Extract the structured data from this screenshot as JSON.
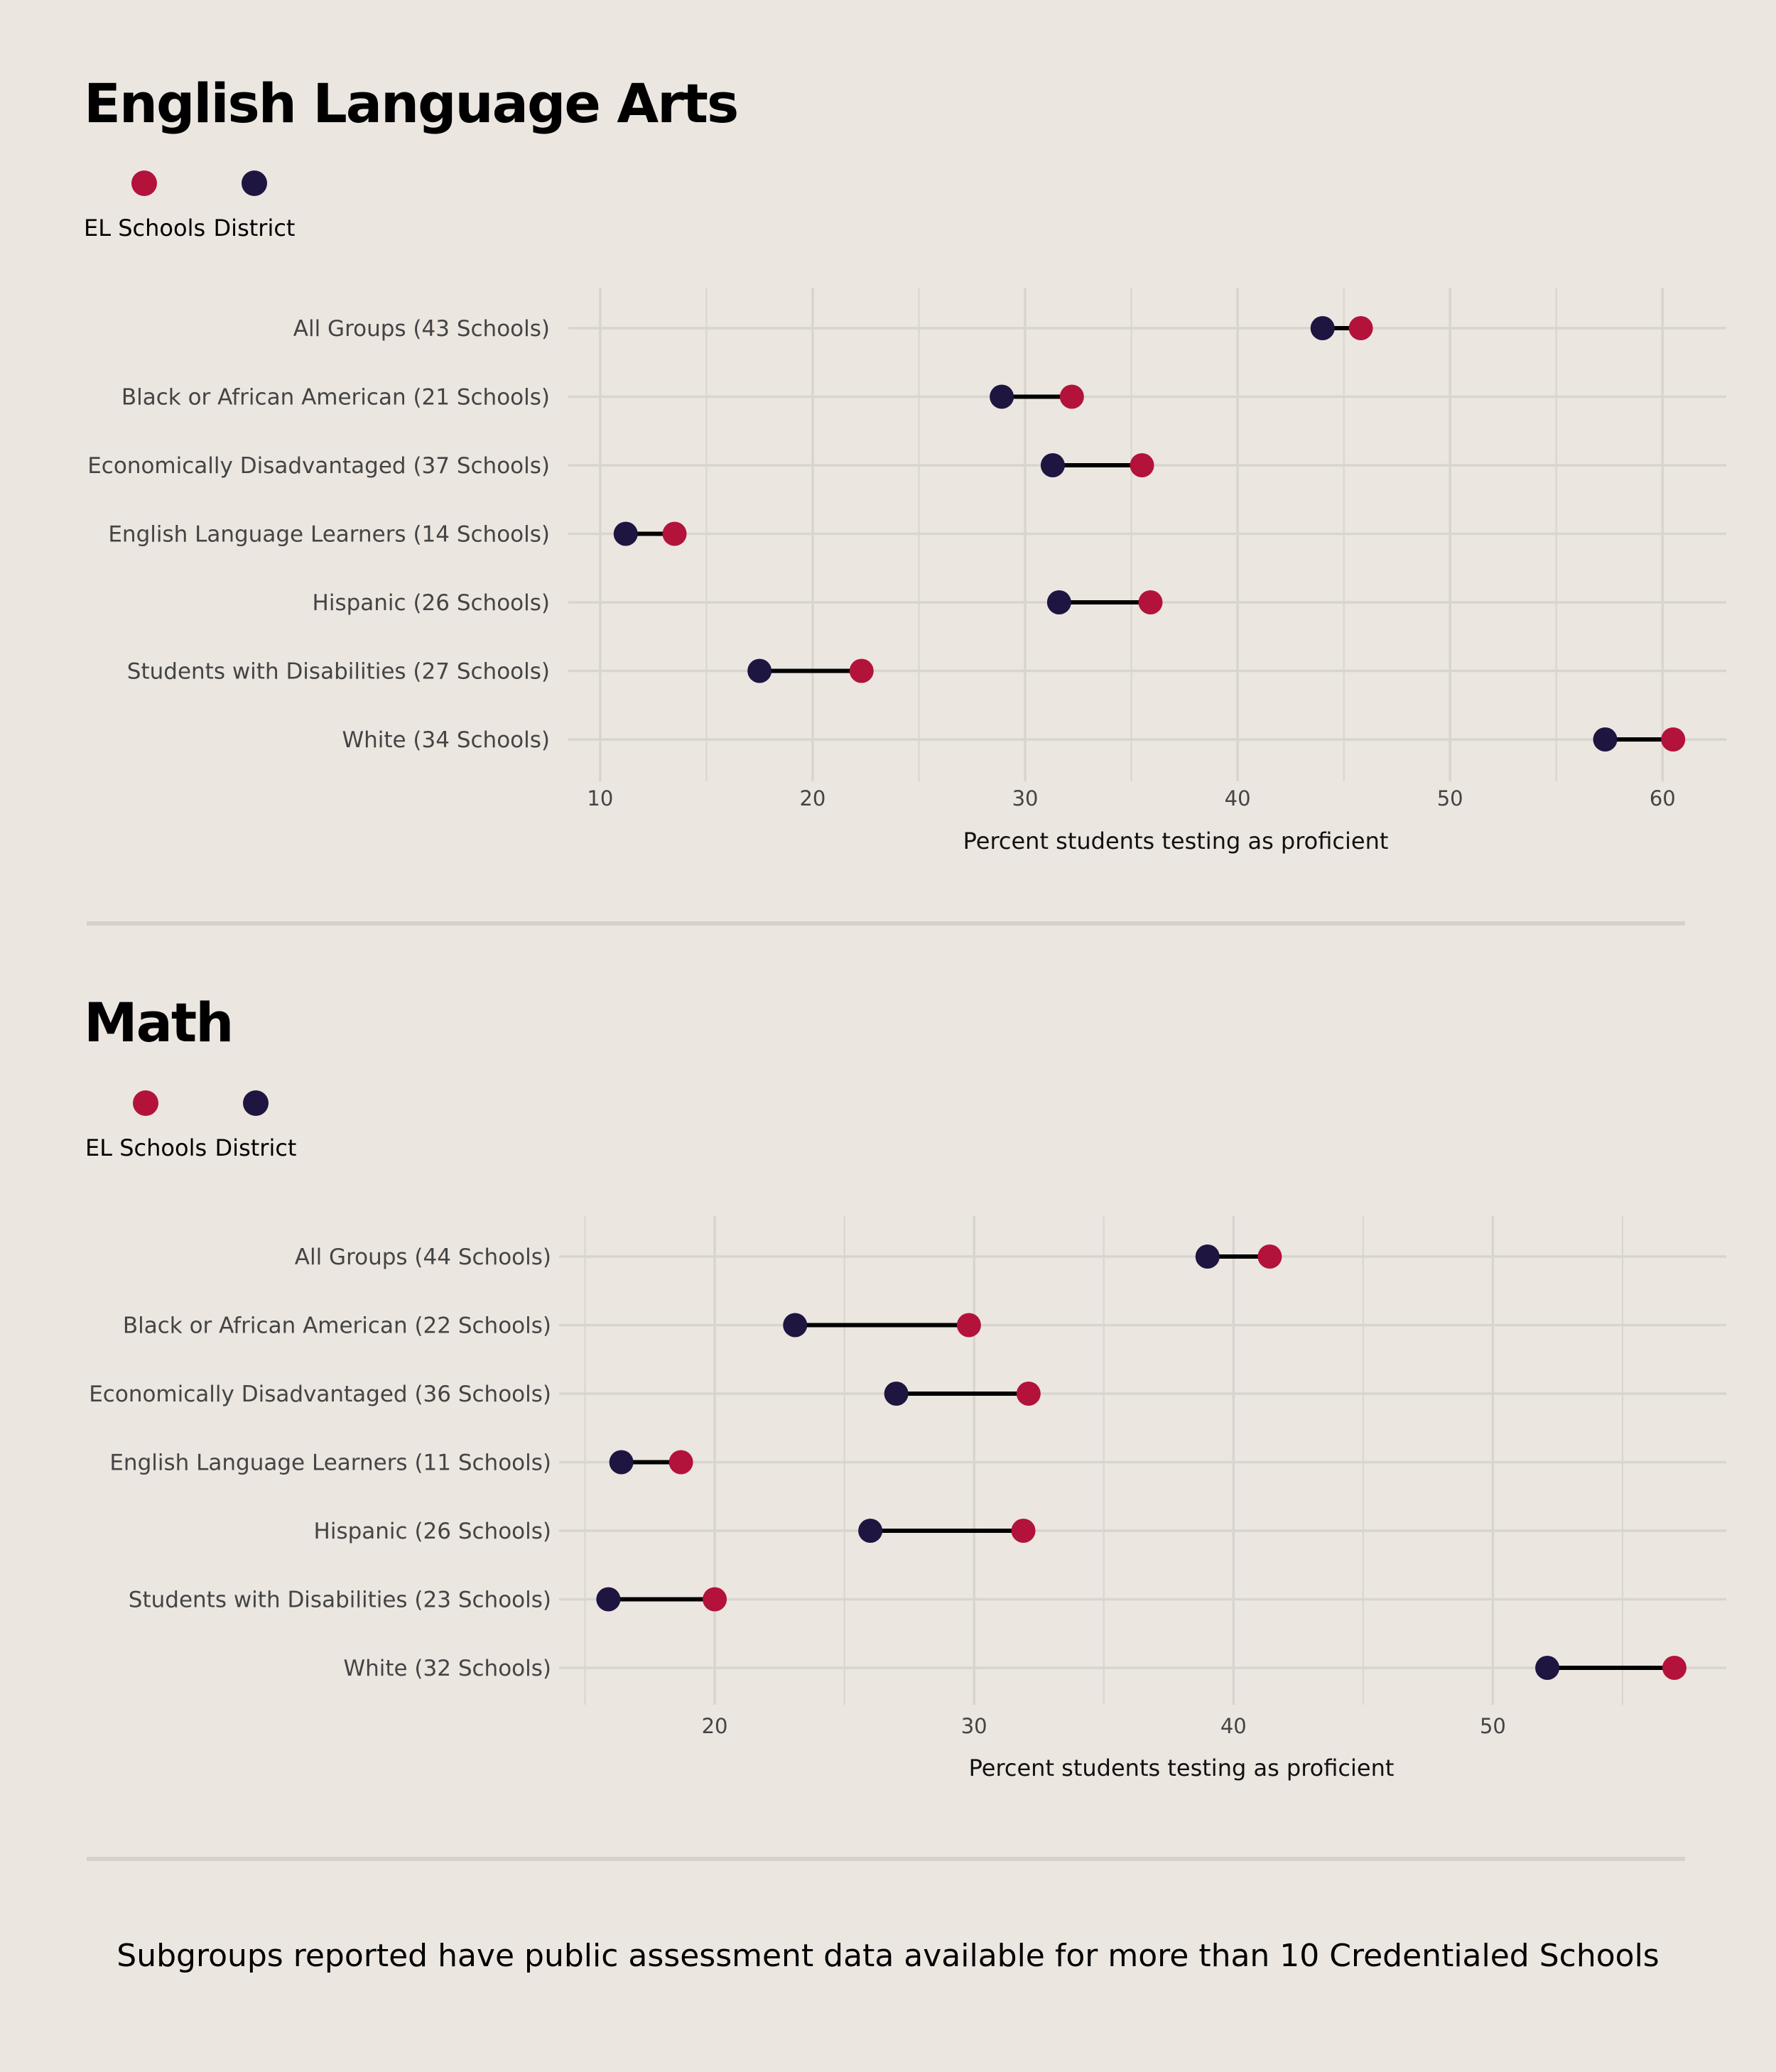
{
  "colors": {
    "el_schools": "#b3123b",
    "district": "#1e1541",
    "connector": "#000000",
    "grid": "#d8d4ce",
    "tick_text": "#444444",
    "axis_title": "#111111"
  },
  "legend": {
    "el_schools_label": "EL Schools",
    "district_label": "District"
  },
  "chart_data": [
    {
      "type": "dumbbell",
      "title": "English Language Arts",
      "xlabel": "Percent students testing as proficient",
      "xlim": [
        8.5,
        63
      ],
      "xticks": [
        10,
        20,
        30,
        40,
        50,
        60
      ],
      "grid": true,
      "legend_position": "top-left",
      "categories": [
        "All Groups (43 Schools)",
        "Black or African American (21 Schools)",
        "Economically Disadvantaged (37 Schools)",
        "English Language Learners (14 Schools)",
        "Hispanic (26 Schools)",
        "Students with Disabilities (27 Schools)",
        "White (34 Schools)"
      ],
      "series": [
        {
          "name": "District",
          "values": [
            44.0,
            28.9,
            31.3,
            11.2,
            31.6,
            17.5,
            57.3
          ]
        },
        {
          "name": "EL Schools",
          "values": [
            45.8,
            32.2,
            35.5,
            13.5,
            35.9,
            22.3,
            60.5
          ]
        }
      ]
    },
    {
      "type": "dumbbell",
      "title": "Math",
      "xlabel": "Percent students testing as proficient",
      "xlim": [
        14,
        59
      ],
      "xticks": [
        20,
        30,
        40,
        50
      ],
      "grid": true,
      "legend_position": "top-left",
      "categories": [
        "All Groups (44 Schools)",
        "Black or African American (22 Schools)",
        "Economically Disadvantaged (36 Schools)",
        "English Language Learners (11 Schools)",
        "Hispanic (26 Schools)",
        "Students with Disabilities (23 Schools)",
        "White (32 Schools)"
      ],
      "series": [
        {
          "name": "District",
          "values": [
            39.0,
            23.1,
            27.0,
            16.4,
            26.0,
            15.9,
            52.1
          ]
        },
        {
          "name": "EL Schools",
          "values": [
            41.4,
            29.8,
            32.1,
            18.7,
            31.9,
            20.0,
            57.0
          ]
        }
      ]
    }
  ],
  "footnote": "Subgroups reported have public assessment data available for more than 10 Credentialed Schools"
}
